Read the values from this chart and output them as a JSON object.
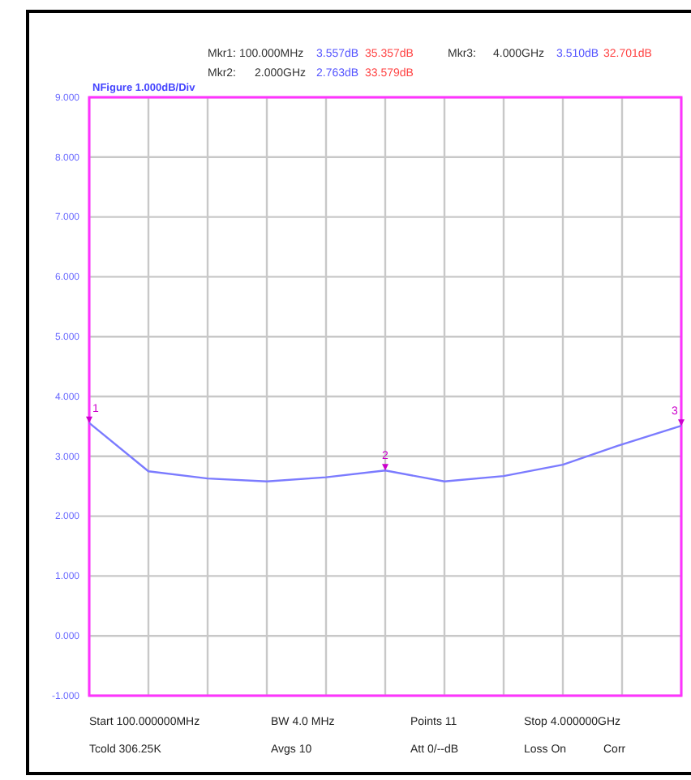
{
  "chart_data": {
    "type": "line",
    "subtitle": "NFigure  1.000dB/Div",
    "categories": [
      null,
      null,
      null,
      null,
      null,
      null,
      null,
      null,
      null,
      null,
      null
    ],
    "series": [
      {
        "color": "#7b7bff",
        "values": [
          3.557,
          2.75,
          2.63,
          2.58,
          2.65,
          2.763,
          2.58,
          2.67,
          2.86,
          3.2,
          3.51
        ]
      }
    ],
    "ylim": [
      -1,
      9
    ],
    "yticks": [
      {
        "value": -1,
        "label": "-1.000"
      },
      {
        "value": 0,
        "label": "0.000"
      },
      {
        "value": 1,
        "label": "1.000"
      },
      {
        "value": 2,
        "label": "2.000"
      },
      {
        "value": 3,
        "label": "3.000"
      },
      {
        "value": 4,
        "label": "4.000"
      },
      {
        "value": 5,
        "label": "5.000"
      },
      {
        "value": 6,
        "label": "6.000"
      },
      {
        "value": 7,
        "label": "7.000"
      },
      {
        "value": 8,
        "label": "8.000"
      },
      {
        "value": 9,
        "label": "9.000"
      }
    ],
    "grid": true,
    "tick_labels": "y",
    "line_style": "solid",
    "marker": "none",
    "annotations": [
      "Mkr1: 100.000MHz",
      "3.557dB",
      "35.357dB",
      "Mkr3:",
      "4.000GHz",
      "3.510dB",
      "32.701dB",
      "Mkr2:",
      "2.000GHz",
      "2.763dB",
      "33.579dB",
      "Start  100.000000MHz",
      "BW  4.0  MHz",
      "Points  11",
      "Stop  4.000000GHz",
      "Tcold  306.25K",
      "Avgs  10",
      "Att  0/--dB",
      "Loss  On",
      "Corr",
      "1",
      "2",
      "3"
    ]
  }
}
